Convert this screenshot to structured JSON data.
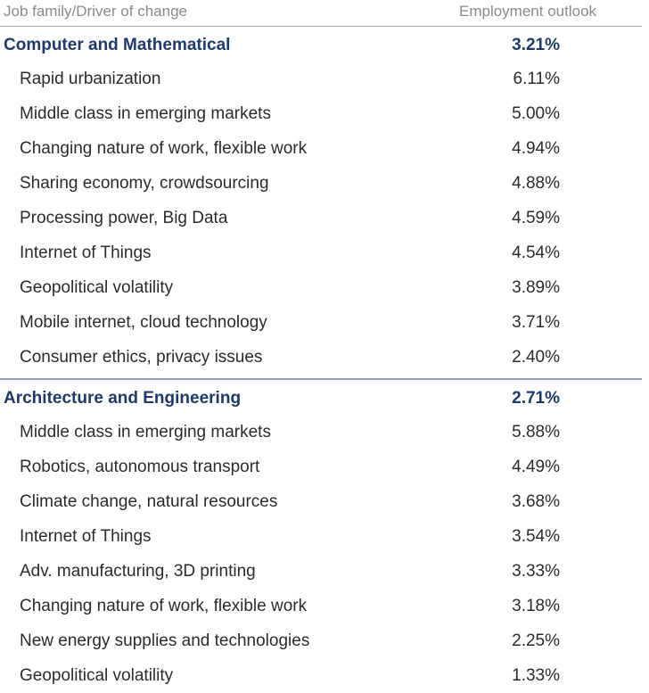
{
  "chart_data": {
    "type": "table",
    "columns": [
      "Job family/Driver of change",
      "Employment outlook"
    ],
    "groups": [
      {
        "name": "Computer and Mathematical",
        "value": "3.21%",
        "rows": [
          {
            "label": "Rapid urbanization",
            "value": "6.11%"
          },
          {
            "label": "Middle class in emerging markets",
            "value": "5.00%"
          },
          {
            "label": "Changing nature of work, flexible work",
            "value": "4.94%"
          },
          {
            "label": "Sharing economy, crowdsourcing",
            "value": "4.88%"
          },
          {
            "label": "Processing power, Big Data",
            "value": "4.59%"
          },
          {
            "label": "Internet of Things",
            "value": "4.54%"
          },
          {
            "label": "Geopolitical volatility",
            "value": "3.89%"
          },
          {
            "label": "Mobile internet, cloud technology",
            "value": "3.71%"
          },
          {
            "label": "Consumer ethics, privacy issues",
            "value": "2.40%"
          }
        ]
      },
      {
        "name": "Architecture and Engineering",
        "value": "2.71%",
        "rows": [
          {
            "label": "Middle class in emerging markets",
            "value": "5.88%"
          },
          {
            "label": "Robotics, autonomous transport",
            "value": "4.49%"
          },
          {
            "label": "Climate change, natural resources",
            "value": "3.68%"
          },
          {
            "label": "Internet of Things",
            "value": "3.54%"
          },
          {
            "label": "Adv. manufacturing, 3D printing",
            "value": "3.33%"
          },
          {
            "label": "Changing nature of work, flexible work",
            "value": "3.18%"
          },
          {
            "label": "New energy supplies and technologies",
            "value": "2.25%"
          },
          {
            "label": "Geopolitical volatility",
            "value": "1.33%"
          }
        ]
      }
    ]
  }
}
